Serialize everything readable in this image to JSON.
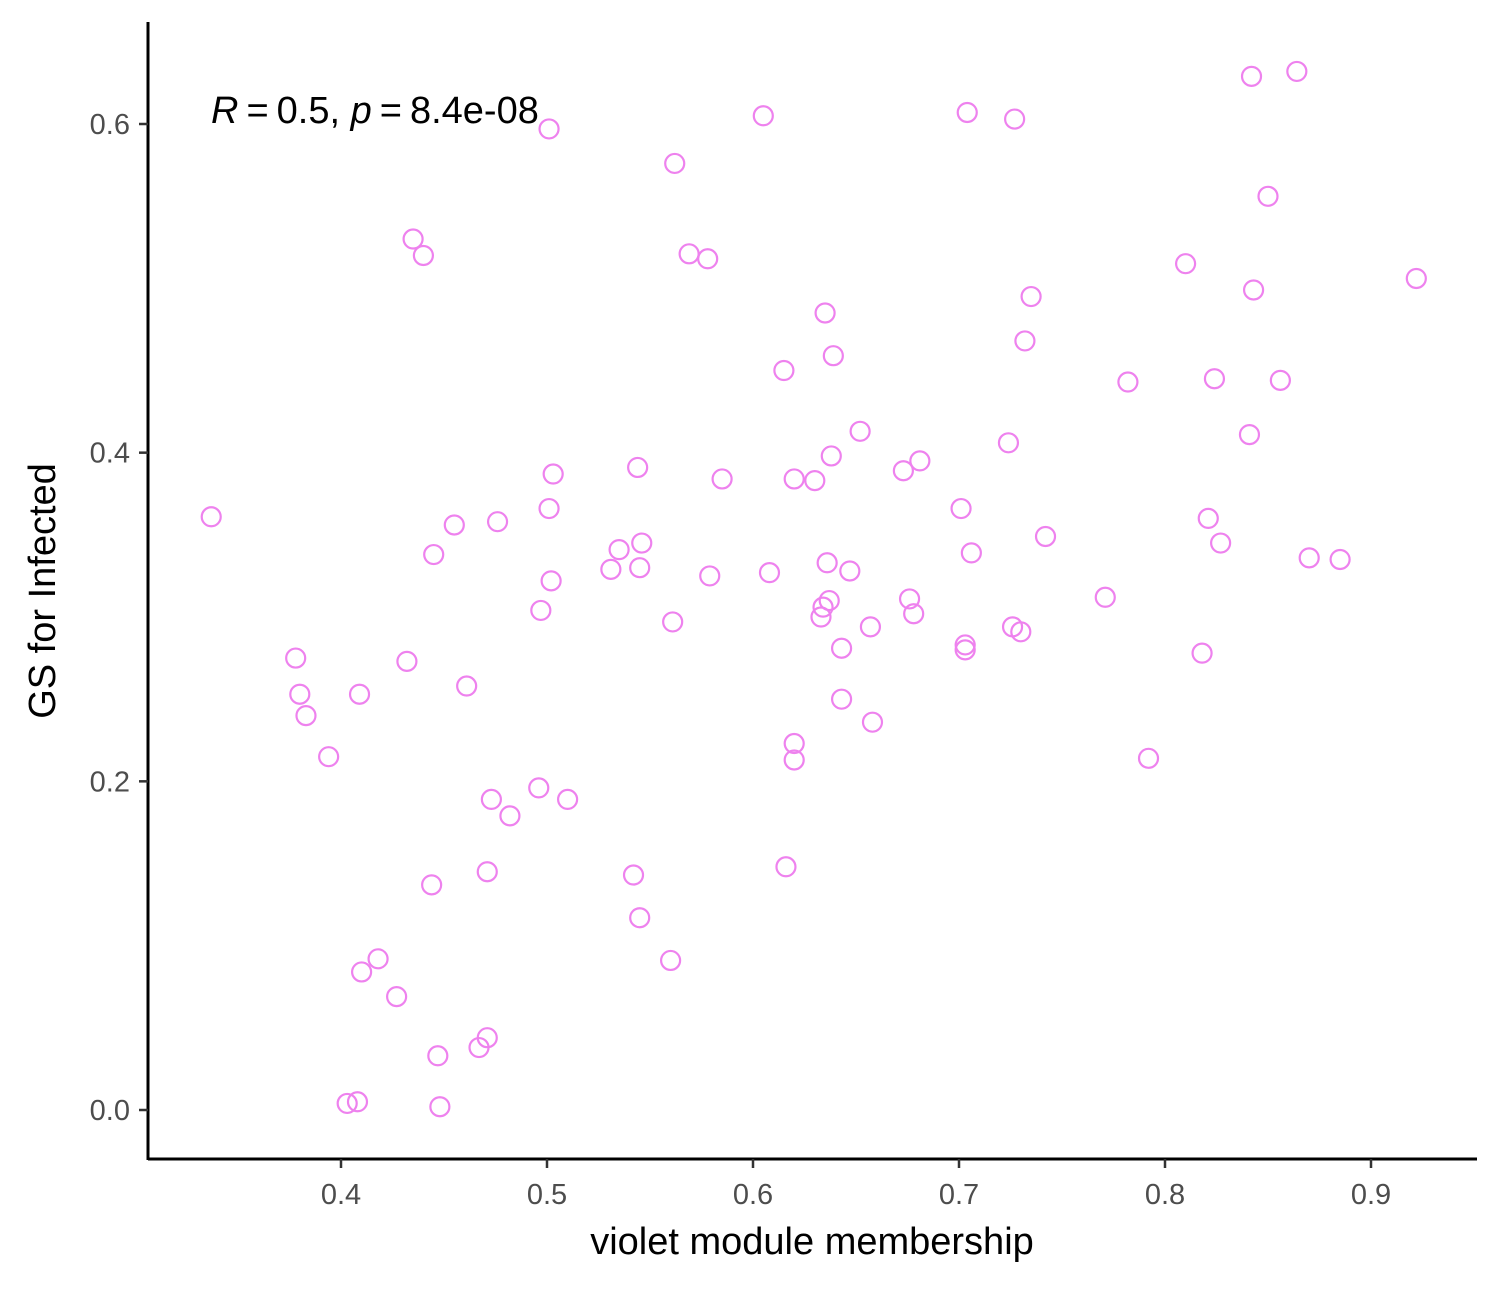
{
  "chart_data": {
    "type": "scatter",
    "xlabel": "violet module membership",
    "ylabel": "GS for Infected",
    "annotation": {
      "r_label": "R",
      "r_value": "0.5",
      "p_label": "p",
      "p_value": "8.4e-08"
    },
    "xlim": [
      0.31,
      0.95
    ],
    "ylim": [
      -0.03,
      0.66
    ],
    "xticks": [
      0.4,
      0.5,
      0.6,
      0.7,
      0.8,
      0.9
    ],
    "xtick_labels": [
      "0.4",
      "0.5",
      "0.6",
      "0.7",
      "0.8",
      "0.9"
    ],
    "yticks": [
      0.0,
      0.2,
      0.4,
      0.6
    ],
    "ytick_labels": [
      "0.0",
      "0.2",
      "0.4",
      "0.6"
    ],
    "grid": false,
    "legend": "none",
    "point_color": "#EE82EE",
    "points": [
      [
        0.337,
        0.361
      ],
      [
        0.378,
        0.275
      ],
      [
        0.38,
        0.253
      ],
      [
        0.383,
        0.24
      ],
      [
        0.394,
        0.215
      ],
      [
        0.403,
        0.004
      ],
      [
        0.408,
        0.005
      ],
      [
        0.409,
        0.253
      ],
      [
        0.41,
        0.084
      ],
      [
        0.418,
        0.092
      ],
      [
        0.427,
        0.069
      ],
      [
        0.432,
        0.273
      ],
      [
        0.435,
        0.53
      ],
      [
        0.44,
        0.52
      ],
      [
        0.444,
        0.137
      ],
      [
        0.445,
        0.338
      ],
      [
        0.447,
        0.033
      ],
      [
        0.448,
        0.002
      ],
      [
        0.455,
        0.356
      ],
      [
        0.461,
        0.258
      ],
      [
        0.467,
        0.038
      ],
      [
        0.471,
        0.044
      ],
      [
        0.471,
        0.145
      ],
      [
        0.473,
        0.189
      ],
      [
        0.476,
        0.358
      ],
      [
        0.482,
        0.179
      ],
      [
        0.496,
        0.196
      ],
      [
        0.497,
        0.304
      ],
      [
        0.501,
        0.597
      ],
      [
        0.501,
        0.366
      ],
      [
        0.502,
        0.322
      ],
      [
        0.503,
        0.387
      ],
      [
        0.51,
        0.189
      ],
      [
        0.531,
        0.329
      ],
      [
        0.535,
        0.341
      ],
      [
        0.542,
        0.143
      ],
      [
        0.544,
        0.391
      ],
      [
        0.545,
        0.117
      ],
      [
        0.545,
        0.33
      ],
      [
        0.546,
        0.345
      ],
      [
        0.56,
        0.091
      ],
      [
        0.561,
        0.297
      ],
      [
        0.562,
        0.576
      ],
      [
        0.569,
        0.521
      ],
      [
        0.578,
        0.518
      ],
      [
        0.579,
        0.325
      ],
      [
        0.585,
        0.384
      ],
      [
        0.605,
        0.605
      ],
      [
        0.608,
        0.327
      ],
      [
        0.615,
        0.45
      ],
      [
        0.616,
        0.148
      ],
      [
        0.62,
        0.223
      ],
      [
        0.62,
        0.213
      ],
      [
        0.62,
        0.384
      ],
      [
        0.63,
        0.383
      ],
      [
        0.633,
        0.3
      ],
      [
        0.634,
        0.306
      ],
      [
        0.635,
        0.485
      ],
      [
        0.636,
        0.333
      ],
      [
        0.637,
        0.31
      ],
      [
        0.638,
        0.398
      ],
      [
        0.639,
        0.459
      ],
      [
        0.643,
        0.25
      ],
      [
        0.643,
        0.281
      ],
      [
        0.647,
        0.328
      ],
      [
        0.652,
        0.413
      ],
      [
        0.657,
        0.294
      ],
      [
        0.658,
        0.236
      ],
      [
        0.673,
        0.389
      ],
      [
        0.676,
        0.311
      ],
      [
        0.678,
        0.302
      ],
      [
        0.681,
        0.395
      ],
      [
        0.701,
        0.366
      ],
      [
        0.703,
        0.283
      ],
      [
        0.703,
        0.28
      ],
      [
        0.704,
        0.607
      ],
      [
        0.706,
        0.339
      ],
      [
        0.724,
        0.406
      ],
      [
        0.726,
        0.294
      ],
      [
        0.727,
        0.603
      ],
      [
        0.73,
        0.291
      ],
      [
        0.732,
        0.468
      ],
      [
        0.735,
        0.495
      ],
      [
        0.742,
        0.349
      ],
      [
        0.771,
        0.312
      ],
      [
        0.782,
        0.443
      ],
      [
        0.792,
        0.214
      ],
      [
        0.81,
        0.515
      ],
      [
        0.818,
        0.278
      ],
      [
        0.821,
        0.36
      ],
      [
        0.824,
        0.445
      ],
      [
        0.827,
        0.345
      ],
      [
        0.841,
        0.411
      ],
      [
        0.842,
        0.629
      ],
      [
        0.843,
        0.499
      ],
      [
        0.85,
        0.556
      ],
      [
        0.856,
        0.444
      ],
      [
        0.864,
        0.632
      ],
      [
        0.87,
        0.336
      ],
      [
        0.885,
        0.335
      ],
      [
        0.922,
        0.506
      ]
    ]
  }
}
